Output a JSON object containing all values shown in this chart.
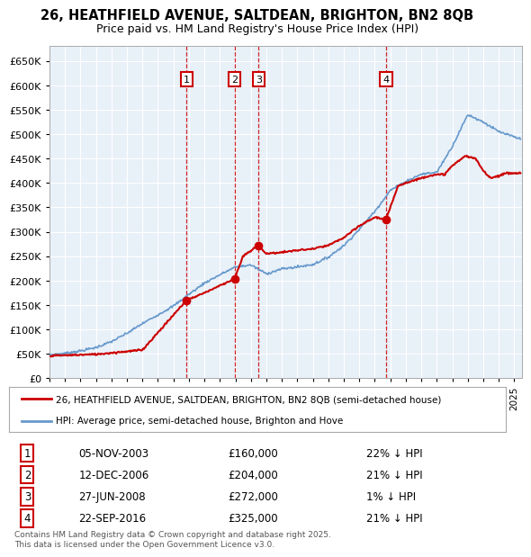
{
  "title": "26, HEATHFIELD AVENUE, SALTDEAN, BRIGHTON, BN2 8QB",
  "subtitle": "Price paid vs. HM Land Registry's House Price Index (HPI)",
  "ylim": [
    0,
    680000
  ],
  "yticks": [
    0,
    50000,
    100000,
    150000,
    200000,
    250000,
    300000,
    350000,
    400000,
    450000,
    500000,
    550000,
    600000,
    650000
  ],
  "xlim_start": 1995.0,
  "xlim_end": 2025.5,
  "background_color": "#ffffff",
  "plot_bg_color": "#e8f0f8",
  "grid_color": "#ffffff",
  "sale_dates": [
    2003.85,
    2006.95,
    2008.49,
    2016.73
  ],
  "sale_prices": [
    160000,
    204000,
    272000,
    325000
  ],
  "sale_labels": [
    "1",
    "2",
    "3",
    "4"
  ],
  "legend_items": [
    {
      "label": "26, HEATHFIELD AVENUE, SALTDEAN, BRIGHTON, BN2 8QB (semi-detached house)",
      "color": "#cc0000"
    },
    {
      "label": "HPI: Average price, semi-detached house, Brighton and Hove",
      "color": "#6699cc"
    }
  ],
  "table_rows": [
    [
      "1",
      "05-NOV-2003",
      "£160,000",
      "22% ↓ HPI"
    ],
    [
      "2",
      "12-DEC-2006",
      "£204,000",
      "21% ↓ HPI"
    ],
    [
      "3",
      "27-JUN-2008",
      "£272,000",
      "1% ↓ HPI"
    ],
    [
      "4",
      "22-SEP-2016",
      "£325,000",
      "21% ↓ HPI"
    ]
  ],
  "footnote": "Contains HM Land Registry data © Crown copyright and database right 2025.\nThis data is licensed under the Open Government Licence v3.0.",
  "sale_line_color": "#cc0000",
  "hpi_line_color": "#6699cc",
  "vline_color": "#cc0000",
  "marker_box_color": "#cc0000",
  "hpi_years": [
    1995,
    1996,
    1997,
    1998,
    1999,
    2000,
    2001,
    2002,
    2003,
    2004,
    2005,
    2006,
    2007,
    2008,
    2009,
    2010,
    2011,
    2012,
    2013,
    2014,
    2015,
    2016,
    2017,
    2018,
    2019,
    2020,
    2021,
    2022,
    2023,
    2024,
    2025.4
  ],
  "hpi_vals": [
    48000,
    51000,
    56000,
    63000,
    75000,
    92000,
    112000,
    130000,
    148000,
    172000,
    195000,
    212000,
    228000,
    232000,
    214000,
    224000,
    228000,
    233000,
    248000,
    272000,
    305000,
    342000,
    385000,
    403000,
    418000,
    422000,
    475000,
    540000,
    525000,
    505000,
    490000
  ],
  "red_years": [
    1995.0,
    1998.0,
    2001.0,
    2003.85,
    2005.0,
    2006.95,
    2007.5,
    2008.49,
    2009.0,
    2010.0,
    2011.0,
    2012.0,
    2013.0,
    2014.0,
    2015.0,
    2016.0,
    2016.73,
    2017.5,
    2018.5,
    2019.5,
    2020.5,
    2021.0,
    2021.8,
    2022.5,
    2023.0,
    2023.5,
    2024.0,
    2024.5,
    2025.4
  ],
  "red_vals": [
    46000,
    49000,
    58000,
    160000,
    175000,
    204000,
    250000,
    272000,
    255000,
    258000,
    262000,
    265000,
    272000,
    288000,
    312000,
    330000,
    325000,
    395000,
    405000,
    415000,
    418000,
    435000,
    455000,
    450000,
    425000,
    410000,
    415000,
    420000,
    420000
  ]
}
